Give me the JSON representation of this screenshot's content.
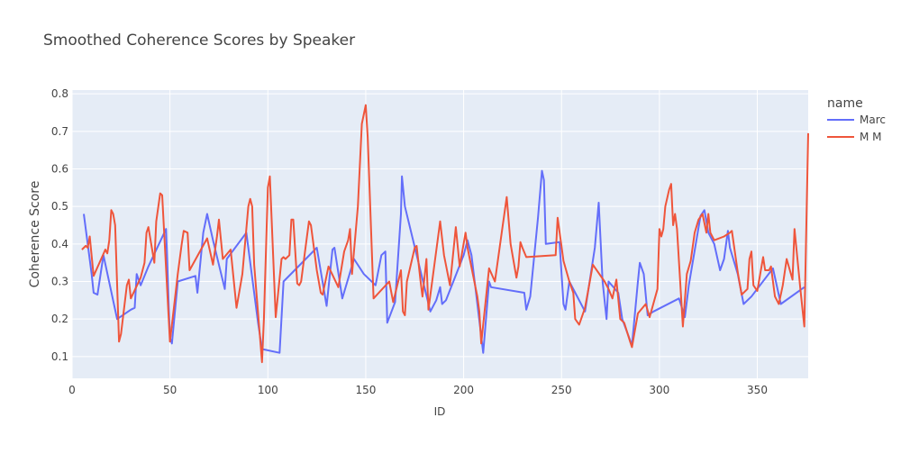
{
  "chart_data": {
    "type": "line",
    "title": "Smoothed Coherence Scores by Speaker",
    "x_label": "ID",
    "y_label": "Coherence Score",
    "legend_title": "name",
    "xlim": [
      0,
      376
    ],
    "ylim": [
      0.042,
      0.81
    ],
    "xticks": [
      0,
      50,
      100,
      150,
      200,
      250,
      300,
      350
    ],
    "yticks": [
      0.1,
      0.2,
      0.3,
      0.4,
      0.5,
      0.6,
      0.7,
      0.8
    ],
    "grid": true,
    "legend_position": "right",
    "series": [
      {
        "name": "Marc",
        "color": "#636efa",
        "x": [
          6,
          10,
          11,
          13,
          16,
          23,
          30,
          32,
          33,
          35,
          39,
          48,
          50,
          51,
          54,
          63,
          64,
          67,
          69,
          72,
          78,
          79,
          89,
          95,
          97,
          106,
          108,
          125,
          130,
          133,
          134,
          138,
          144,
          149,
          155,
          158,
          160,
          161,
          165,
          168,
          168.5,
          170,
          183,
          186,
          188,
          189,
          191,
          200,
          202,
          204,
          210,
          213,
          214,
          231,
          232,
          234,
          238,
          240,
          241,
          242,
          249,
          251,
          252,
          254,
          262,
          267,
          269,
          271,
          273,
          274,
          279,
          281,
          286,
          289,
          290,
          292,
          294,
          297,
          310,
          313,
          315,
          321,
          323,
          325,
          328,
          331,
          333,
          335,
          336,
          340,
          343,
          347,
          358,
          362,
          374
        ],
        "values": [
          0.48,
          0.32,
          0.27,
          0.265,
          0.37,
          0.2,
          0.225,
          0.23,
          0.32,
          0.29,
          0.34,
          0.44,
          0.15,
          0.135,
          0.3,
          0.315,
          0.27,
          0.43,
          0.48,
          0.41,
          0.28,
          0.36,
          0.43,
          0.19,
          0.12,
          0.11,
          0.3,
          0.39,
          0.235,
          0.385,
          0.39,
          0.255,
          0.36,
          0.32,
          0.29,
          0.37,
          0.38,
          0.19,
          0.245,
          0.48,
          0.58,
          0.5,
          0.22,
          0.25,
          0.285,
          0.24,
          0.25,
          0.37,
          0.41,
          0.37,
          0.11,
          0.3,
          0.285,
          0.27,
          0.225,
          0.26,
          0.47,
          0.595,
          0.57,
          0.4,
          0.405,
          0.24,
          0.225,
          0.3,
          0.22,
          0.39,
          0.51,
          0.3,
          0.2,
          0.3,
          0.27,
          0.2,
          0.13,
          0.3,
          0.35,
          0.32,
          0.21,
          0.22,
          0.255,
          0.205,
          0.29,
          0.475,
          0.49,
          0.43,
          0.4,
          0.33,
          0.36,
          0.435,
          0.39,
          0.32,
          0.24,
          0.26,
          0.335,
          0.24,
          0.285
        ]
      },
      {
        "name": "M M",
        "color": "#ef553b",
        "x": [
          5,
          7,
          8,
          9,
          11,
          17,
          18,
          19,
          20,
          21,
          22,
          24,
          25,
          28,
          29,
          30,
          35,
          37,
          38,
          39,
          42,
          43,
          45,
          46,
          50,
          52,
          54,
          56,
          57,
          59,
          60,
          69,
          72,
          74,
          75,
          77,
          81,
          84,
          85,
          87,
          90,
          91,
          92,
          93,
          97,
          98,
          100,
          101,
          104,
          107,
          108,
          109,
          111,
          112,
          113,
          115,
          116,
          117,
          120,
          121,
          122,
          123,
          125,
          127,
          128,
          131,
          136,
          139,
          141,
          142,
          143,
          146,
          148,
          150,
          151,
          154,
          162,
          164,
          168,
          169,
          170,
          171,
          175,
          176,
          178,
          179,
          181,
          182,
          188,
          190,
          193,
          196,
          198,
          201,
          202,
          207,
          208,
          209,
          213,
          216,
          220,
          222,
          224,
          227,
          228,
          229,
          230,
          232,
          247,
          248,
          251,
          254,
          256,
          257,
          259,
          262,
          266,
          272,
          274,
          276,
          278,
          280,
          282,
          285,
          286,
          289,
          293,
          295,
          299,
          300,
          301,
          302,
          303,
          305,
          306,
          307,
          308,
          309,
          312,
          314,
          316,
          318,
          320,
          322,
          324,
          325,
          326,
          328,
          333,
          336,
          337,
          340,
          342,
          345,
          346,
          347,
          348,
          350,
          353,
          354,
          356,
          357,
          359,
          361,
          363,
          365,
          368,
          369,
          372,
          374,
          376
        ],
        "values": [
          0.385,
          0.395,
          0.39,
          0.42,
          0.315,
          0.385,
          0.375,
          0.41,
          0.49,
          0.48,
          0.45,
          0.14,
          0.16,
          0.29,
          0.305,
          0.255,
          0.31,
          0.35,
          0.43,
          0.445,
          0.35,
          0.46,
          0.535,
          0.53,
          0.14,
          0.23,
          0.32,
          0.4,
          0.435,
          0.43,
          0.33,
          0.415,
          0.345,
          0.42,
          0.465,
          0.36,
          0.385,
          0.23,
          0.26,
          0.32,
          0.5,
          0.52,
          0.5,
          0.345,
          0.085,
          0.2,
          0.55,
          0.58,
          0.205,
          0.36,
          0.365,
          0.36,
          0.37,
          0.465,
          0.465,
          0.295,
          0.29,
          0.3,
          0.42,
          0.46,
          0.45,
          0.41,
          0.33,
          0.27,
          0.265,
          0.34,
          0.285,
          0.38,
          0.41,
          0.44,
          0.32,
          0.5,
          0.72,
          0.77,
          0.685,
          0.255,
          0.3,
          0.245,
          0.33,
          0.22,
          0.21,
          0.3,
          0.39,
          0.395,
          0.3,
          0.26,
          0.36,
          0.225,
          0.46,
          0.37,
          0.29,
          0.445,
          0.34,
          0.43,
          0.39,
          0.26,
          0.22,
          0.135,
          0.335,
          0.3,
          0.45,
          0.525,
          0.4,
          0.31,
          0.34,
          0.405,
          0.39,
          0.365,
          0.37,
          0.47,
          0.355,
          0.3,
          0.27,
          0.2,
          0.185,
          0.23,
          0.345,
          0.3,
          0.28,
          0.255,
          0.305,
          0.2,
          0.19,
          0.14,
          0.125,
          0.215,
          0.24,
          0.205,
          0.28,
          0.44,
          0.42,
          0.44,
          0.5,
          0.545,
          0.56,
          0.45,
          0.48,
          0.44,
          0.18,
          0.32,
          0.355,
          0.43,
          0.465,
          0.48,
          0.43,
          0.48,
          0.43,
          0.41,
          0.42,
          0.43,
          0.435,
          0.325,
          0.265,
          0.28,
          0.36,
          0.38,
          0.29,
          0.275,
          0.365,
          0.33,
          0.33,
          0.34,
          0.26,
          0.24,
          0.29,
          0.36,
          0.305,
          0.44,
          0.28,
          0.18,
          0.695
        ]
      }
    ]
  }
}
